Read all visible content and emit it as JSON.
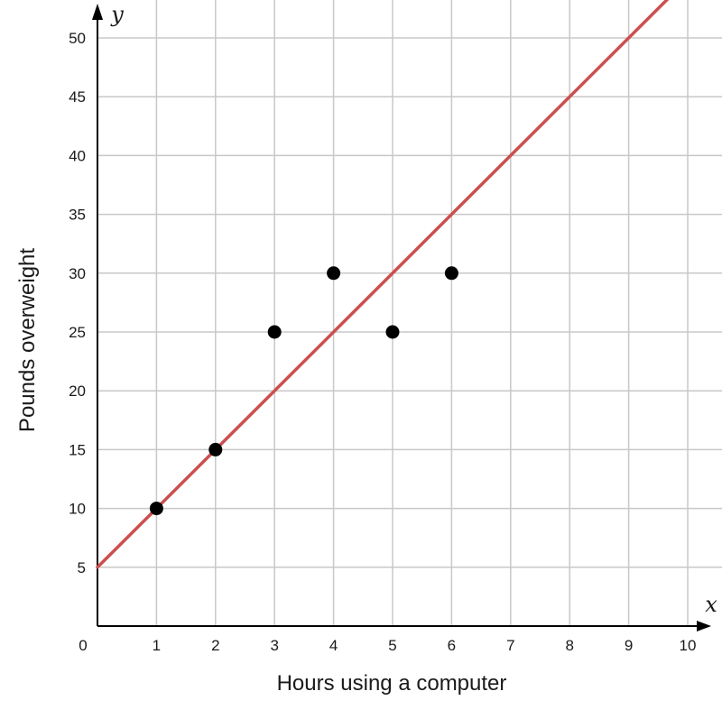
{
  "chart_data": {
    "type": "scatter",
    "title": "",
    "xlabel": "Hours using a computer",
    "ylabel": "Pounds overweight",
    "x_var": "x",
    "y_var": "y",
    "xlim": [
      0,
      10
    ],
    "ylim": [
      0,
      50
    ],
    "x_ticks": [
      "0",
      "1",
      "2",
      "3",
      "4",
      "5",
      "6",
      "7",
      "8",
      "9",
      "10"
    ],
    "y_ticks": [
      "5",
      "10",
      "15",
      "20",
      "25",
      "30",
      "35",
      "40",
      "45",
      "50"
    ],
    "grid": true,
    "points": [
      {
        "x": 1,
        "y": 10
      },
      {
        "x": 2,
        "y": 15
      },
      {
        "x": 3,
        "y": 25
      },
      {
        "x": 4,
        "y": 30
      },
      {
        "x": 5,
        "y": 25
      },
      {
        "x": 6,
        "y": 30
      }
    ],
    "trend_line": {
      "slope": 5,
      "intercept": 5
    },
    "point_color": "#000000",
    "line_color": "#cc4f4f",
    "grid_color": "#c8c8c8"
  }
}
